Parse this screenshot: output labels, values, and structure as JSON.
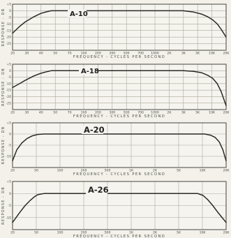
{
  "colors": {
    "background": "#f3f1ea",
    "grid": "#a9a69b",
    "frame": "#55544e",
    "curve": "#2a2a26",
    "text": "#4a4a46"
  },
  "chart_data": [
    {
      "type": "line",
      "title": "A-10",
      "xlabel": "FREQUENCY - CYCLES PER SECOND",
      "ylabel": "RESPONSE - DB",
      "x_scale": "log",
      "xlim": [
        20,
        20000
      ],
      "ylim": [
        -30,
        5
      ],
      "x_ticks": [
        "20",
        "30",
        "40",
        "50",
        "70",
        "100",
        "200",
        "300",
        "500",
        "700",
        "1000",
        "2K",
        "3K",
        "5K",
        "10K",
        "20K"
      ],
      "y_ticks": [
        "+5",
        "0",
        "-5",
        "-10",
        "-15",
        "-20",
        "-25"
      ],
      "grid": true,
      "series": [
        {
          "x": [
            20,
            25,
            30,
            40,
            50,
            60,
            70,
            85,
            100,
            200,
            500,
            1000,
            2000,
            3000,
            5000,
            7000,
            9000,
            11000,
            13000,
            15000,
            17000,
            20000
          ],
          "y": [
            -17,
            -12,
            -8.5,
            -4.5,
            -2,
            -0.8,
            0,
            0,
            0,
            0,
            0,
            0,
            0,
            0,
            0,
            -1,
            -2.5,
            -4.5,
            -7,
            -10,
            -14,
            -20
          ]
        }
      ]
    },
    {
      "type": "line",
      "title": "A-18",
      "xlabel": "FREQUENCY - CYCLES PER SECOND",
      "ylabel": "RESPONSE - DB",
      "x_scale": "log",
      "xlim": [
        20,
        20000
      ],
      "ylim": [
        -30,
        5
      ],
      "x_ticks": [
        "20",
        "30",
        "40",
        "50",
        "70",
        "100",
        "200",
        "300",
        "500",
        "700",
        "1000",
        "2K",
        "3K",
        "5K",
        "10K",
        "20K"
      ],
      "y_ticks": [
        "+5",
        "0",
        "-5",
        "-10",
        "-15",
        "-20",
        "-25"
      ],
      "grid": true,
      "series": [
        {
          "x": [
            20,
            25,
            30,
            40,
            50,
            60,
            70,
            85,
            100,
            200,
            500,
            1000,
            2000,
            3000,
            5000,
            7000,
            9000,
            11000,
            13000,
            15000,
            17000,
            20000
          ],
          "y": [
            -13,
            -10,
            -7.5,
            -4,
            -2,
            -0.8,
            0,
            0,
            0,
            0,
            0,
            0,
            0,
            0,
            0,
            -0.5,
            -1.5,
            -3.5,
            -6,
            -10,
            -16,
            -27
          ]
        }
      ]
    },
    {
      "type": "line",
      "title": "A-20",
      "xlabel": "FREQUENCY - CYCLES PER SECOND",
      "ylabel": "RESPONSE - DB",
      "x_scale": "log",
      "xlim": [
        20,
        20000
      ],
      "ylim": [
        -15,
        5
      ],
      "x_ticks": [
        "20",
        "50",
        "100",
        "200",
        "500",
        "1K",
        "2K",
        "5K",
        "10K",
        "20K"
      ],
      "y_ticks": [
        "+5",
        "0",
        "-5",
        "-10"
      ],
      "grid": true,
      "series": [
        {
          "x": [
            20,
            23,
            27,
            32,
            38,
            45,
            55,
            70,
            100,
            1000,
            5000,
            10000,
            12000,
            14000,
            16000,
            18000,
            20000
          ],
          "y": [
            -12,
            -7,
            -4,
            -2,
            -0.8,
            -0.2,
            0,
            0,
            0,
            0,
            0,
            0,
            -0.5,
            -1.5,
            -3.5,
            -7,
            -12
          ]
        }
      ]
    },
    {
      "type": "line",
      "title": "A-26",
      "xlabel": "FREQUENCY - CYCLES PER SECOND",
      "ylabel": "RESPONSE - DB",
      "x_scale": "log",
      "xlim": [
        20,
        20000
      ],
      "ylim": [
        -15,
        5
      ],
      "x_ticks": [
        "20",
        "50",
        "100",
        "200",
        "500",
        "1K",
        "2K",
        "5K",
        "10K",
        "20K"
      ],
      "y_ticks": [
        "+5",
        "0",
        "-5",
        "-10"
      ],
      "grid": true,
      "series": [
        {
          "x": [
            20,
            25,
            30,
            35,
            40,
            45,
            55,
            70,
            100,
            1000,
            5000,
            8000,
            9500,
            11000,
            13000,
            15000,
            17000,
            20000
          ],
          "y": [
            -12,
            -8,
            -5,
            -3,
            -1.5,
            -0.5,
            0,
            0,
            0,
            0,
            0,
            0,
            -0.8,
            -2.5,
            -5,
            -7.5,
            -9.5,
            -12
          ]
        }
      ]
    }
  ]
}
